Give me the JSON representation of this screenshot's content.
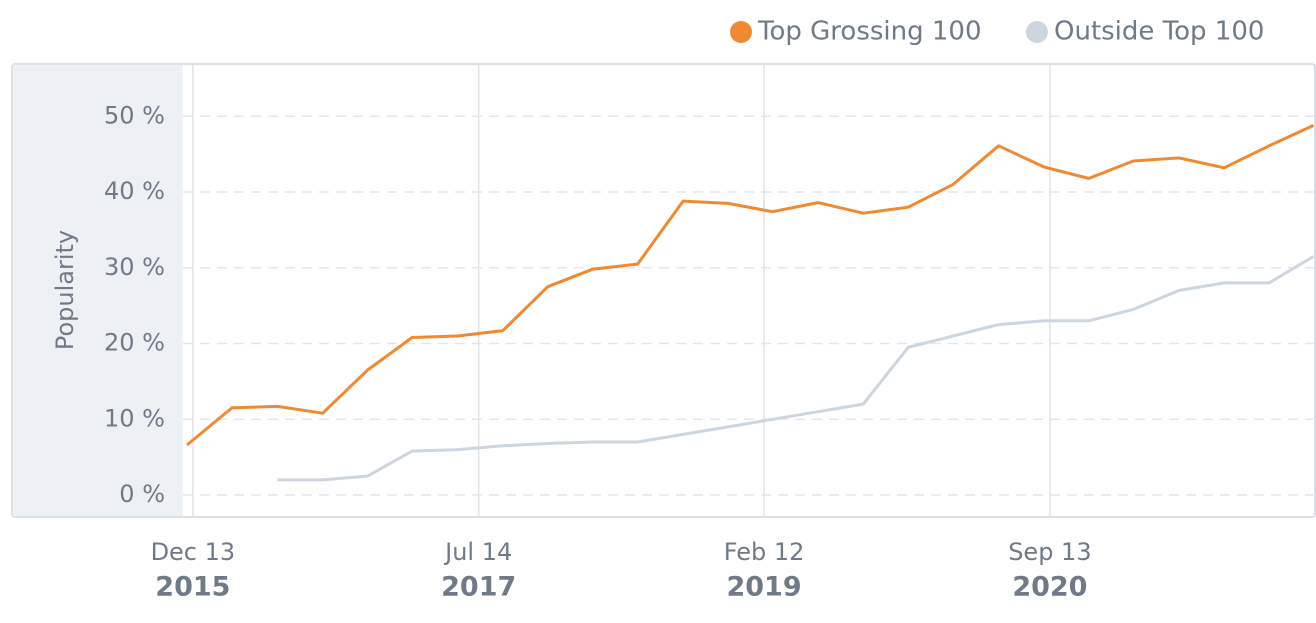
{
  "chart_data": {
    "type": "line",
    "y_label": "Popularity",
    "x": [
      "2015-12-01",
      "2016-03-01",
      "2016-06-01",
      "2016-09-01",
      "2016-12-01",
      "2017-03-01",
      "2017-06-01",
      "2017-09-01",
      "2017-12-01",
      "2018-03-01",
      "2018-06-01",
      "2018-09-01",
      "2018-12-01",
      "2019-03-01",
      "2019-06-01",
      "2019-09-01",
      "2019-12-01",
      "2020-03-01",
      "2020-06-01",
      "2020-09-01",
      "2020-12-01",
      "2021-03-01",
      "2021-06-01",
      "2021-09-01",
      "2021-12-01",
      "2022-03-01"
    ],
    "series": [
      {
        "name": "Top Grossing 100",
        "color": "#f08a32",
        "values": [
          6.6,
          11.5,
          11.7,
          10.8,
          16.5,
          20.8,
          21.0,
          21.7,
          27.5,
          29.8,
          30.5,
          38.8,
          38.5,
          37.4,
          38.6,
          37.2,
          38.0,
          41.0,
          46.1,
          43.3,
          41.8,
          44.1,
          44.5,
          43.2,
          46.1,
          48.8
        ]
      },
      {
        "name": "Outside Top 100",
        "color": "#cdd6df",
        "values": [
          null,
          null,
          2,
          2,
          2.5,
          5.8,
          6,
          6.5,
          6.8,
          7,
          7,
          8,
          9,
          10,
          11,
          12,
          19.5,
          21,
          22.5,
          23,
          23,
          24.5,
          27,
          28,
          28,
          31.5
        ]
      }
    ],
    "xlim": [
      "2015-11-23",
      "2022-03-06"
    ],
    "xticks": [
      {
        "value": "2015-12-13",
        "label": [
          "Dec 13",
          "2015"
        ]
      },
      {
        "value": "2017-07-14",
        "label": [
          "Jul 14",
          "2017"
        ]
      },
      {
        "value": "2019-02-12",
        "label": [
          "Feb 12",
          "2019"
        ]
      },
      {
        "value": "2020-09-13",
        "label": [
          "Sep 13",
          "2020"
        ]
      }
    ],
    "ylim": [
      -2.9,
      56.9
    ],
    "yticks": [
      {
        "value": 0,
        "label": "0 %"
      },
      {
        "value": 10,
        "label": "10 %"
      },
      {
        "value": 20,
        "label": "20 %"
      },
      {
        "value": 30,
        "label": "30 %"
      },
      {
        "value": 40,
        "label": "40 %"
      },
      {
        "value": 50,
        "label": "50 %"
      }
    ],
    "grid": true,
    "legend": "top-right"
  }
}
